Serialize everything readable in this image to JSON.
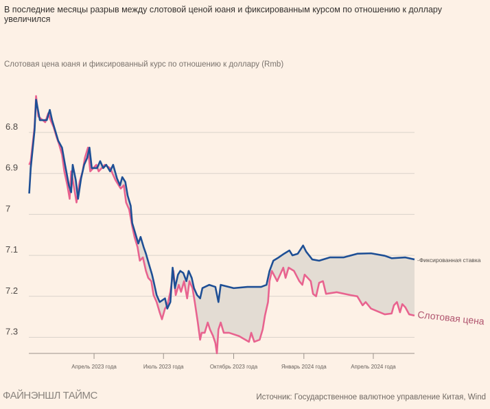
{
  "title": "В последние месяцы разрыв между слотовой ценой юаня и фиксированным курсом по отношению к доллару увеличился",
  "brand": "ФАЙНЭНШЛ ТАЙМС",
  "source": "Источник: Государственное валютное управление Китая, Wind",
  "chart_data": {
    "type": "line",
    "title": "Слотовая цена юаня и фиксированный курс по отношению к доллару (Rmb)",
    "xlabel": "",
    "ylabel": "Rmb",
    "x_unit": "days since 2023-01-01",
    "xlim": [
      4.5,
      510
    ],
    "ylim": [
      6.7,
      7.34
    ],
    "y_inverted": true,
    "grid": true,
    "y_ticks": [
      {
        "value": 6.8,
        "label": "6.8"
      },
      {
        "value": 6.9,
        "label": "6.9"
      },
      {
        "value": 7.0,
        "label": "7"
      },
      {
        "value": 7.1,
        "label": "7.1"
      },
      {
        "value": 7.2,
        "label": "7.2"
      },
      {
        "value": 7.3,
        "label": "7.3"
      }
    ],
    "x_ticks": [
      {
        "value": 90,
        "label": "Апрель 2023 года"
      },
      {
        "value": 181,
        "label": "Июль 2023 года"
      },
      {
        "value": 273,
        "label": "Октябрь 2023 года"
      },
      {
        "value": 365,
        "label": "Январь 2024 года"
      },
      {
        "value": 456,
        "label": "Апрель 2024 года"
      }
    ],
    "colors": {
      "fixed": "#1e4f95",
      "spot": "#e8638f",
      "gap": "#e3dcd3",
      "axis": "#9a918a",
      "grid": "#d9d2ca"
    },
    "series": [
      {
        "name": "Фиксированная ставка",
        "label": "-Фиксированная ставка",
        "color": "#1e4f95",
        "x": [
          5,
          7,
          12,
          14,
          19,
          28,
          32,
          35,
          39,
          43,
          48,
          52,
          57,
          60,
          62,
          66,
          69,
          73,
          77,
          81,
          84,
          87,
          94,
          98,
          102,
          106,
          111,
          115,
          120,
          124,
          127,
          131,
          134,
          138,
          140,
          144,
          148,
          151,
          155,
          158,
          162,
          166,
          168,
          172,
          176,
          183,
          186,
          190,
          193,
          196,
          200,
          203,
          207,
          211,
          214,
          218,
          221,
          225,
          229,
          232,
          241,
          249,
          253,
          256,
          273,
          291,
          309,
          316,
          320,
          325,
          332,
          339,
          346,
          350,
          357,
          364,
          368,
          376,
          385,
          399,
          417,
          435,
          453,
          471,
          480,
          498,
          510
        ],
        "y": [
          6.949,
          6.887,
          6.795,
          6.72,
          6.77,
          6.77,
          6.745,
          6.77,
          6.795,
          6.82,
          6.837,
          6.879,
          6.929,
          6.946,
          6.879,
          6.916,
          6.962,
          6.912,
          6.879,
          6.862,
          6.837,
          6.887,
          6.887,
          6.87,
          6.887,
          6.879,
          6.895,
          6.879,
          6.912,
          6.929,
          6.909,
          6.921,
          6.954,
          6.979,
          7.021,
          7.046,
          7.071,
          7.055,
          7.08,
          7.096,
          7.122,
          7.147,
          7.163,
          7.197,
          7.214,
          7.205,
          7.23,
          7.214,
          7.13,
          7.18,
          7.147,
          7.138,
          7.143,
          7.163,
          7.138,
          7.155,
          7.18,
          7.197,
          7.205,
          7.18,
          7.172,
          7.177,
          7.214,
          7.172,
          7.18,
          7.177,
          7.177,
          7.172,
          7.138,
          7.113,
          7.105,
          7.096,
          7.088,
          7.1,
          7.096,
          7.076,
          7.091,
          7.11,
          7.113,
          7.105,
          7.105,
          7.096,
          7.095,
          7.101,
          7.107,
          7.105,
          7.11
        ]
      },
      {
        "name": "Спотовая цена",
        "label": "Слотовая цена",
        "color": "#e8638f",
        "x": [
          5,
          7,
          12,
          14,
          17,
          26,
          30,
          33,
          37,
          41,
          44,
          48,
          51,
          55,
          58,
          60,
          64,
          67,
          71,
          75,
          78,
          82,
          85,
          93,
          96,
          104,
          111,
          118,
          125,
          129,
          132,
          136,
          140,
          143,
          147,
          150,
          154,
          158,
          161,
          165,
          168,
          172,
          176,
          179,
          183,
          186,
          190,
          194,
          197,
          201,
          204,
          208,
          212,
          215,
          219,
          222,
          226,
          229,
          231,
          235,
          239,
          242,
          246,
          249,
          251,
          253,
          256,
          260,
          267,
          280,
          293,
          296,
          300,
          307,
          311,
          314,
          318,
          320,
          323,
          330,
          338,
          341,
          345,
          352,
          359,
          363,
          366,
          374,
          377,
          381,
          385,
          390,
          394,
          408,
          426,
          435,
          442,
          446,
          453,
          471,
          480,
          483,
          487,
          491,
          494,
          498,
          503,
          510
        ],
        "y": [
          6.879,
          6.87,
          6.787,
          6.711,
          6.761,
          6.775,
          6.753,
          6.77,
          6.787,
          6.812,
          6.828,
          6.854,
          6.895,
          6.929,
          6.962,
          6.895,
          6.937,
          6.971,
          6.921,
          6.895,
          6.862,
          6.837,
          6.895,
          6.879,
          6.895,
          6.879,
          6.887,
          6.916,
          6.937,
          6.929,
          6.971,
          6.988,
          7.029,
          7.055,
          7.08,
          7.113,
          7.105,
          7.138,
          7.155,
          7.163,
          7.197,
          7.214,
          7.239,
          7.256,
          7.23,
          7.222,
          7.189,
          7.138,
          7.197,
          7.172,
          7.189,
          7.163,
          7.205,
          7.163,
          7.18,
          7.214,
          7.264,
          7.306,
          7.289,
          7.289,
          7.264,
          7.281,
          7.297,
          7.314,
          7.339,
          7.281,
          7.264,
          7.289,
          7.289,
          7.297,
          7.311,
          7.289,
          7.311,
          7.306,
          7.281,
          7.247,
          7.214,
          7.163,
          7.138,
          7.163,
          7.13,
          7.155,
          7.13,
          7.138,
          7.163,
          7.172,
          7.147,
          7.163,
          7.194,
          7.2,
          7.167,
          7.163,
          7.194,
          7.19,
          7.197,
          7.2,
          7.222,
          7.214,
          7.23,
          7.244,
          7.242,
          7.222,
          7.214,
          7.239,
          7.219,
          7.227,
          7.244,
          7.247
        ]
      }
    ]
  }
}
